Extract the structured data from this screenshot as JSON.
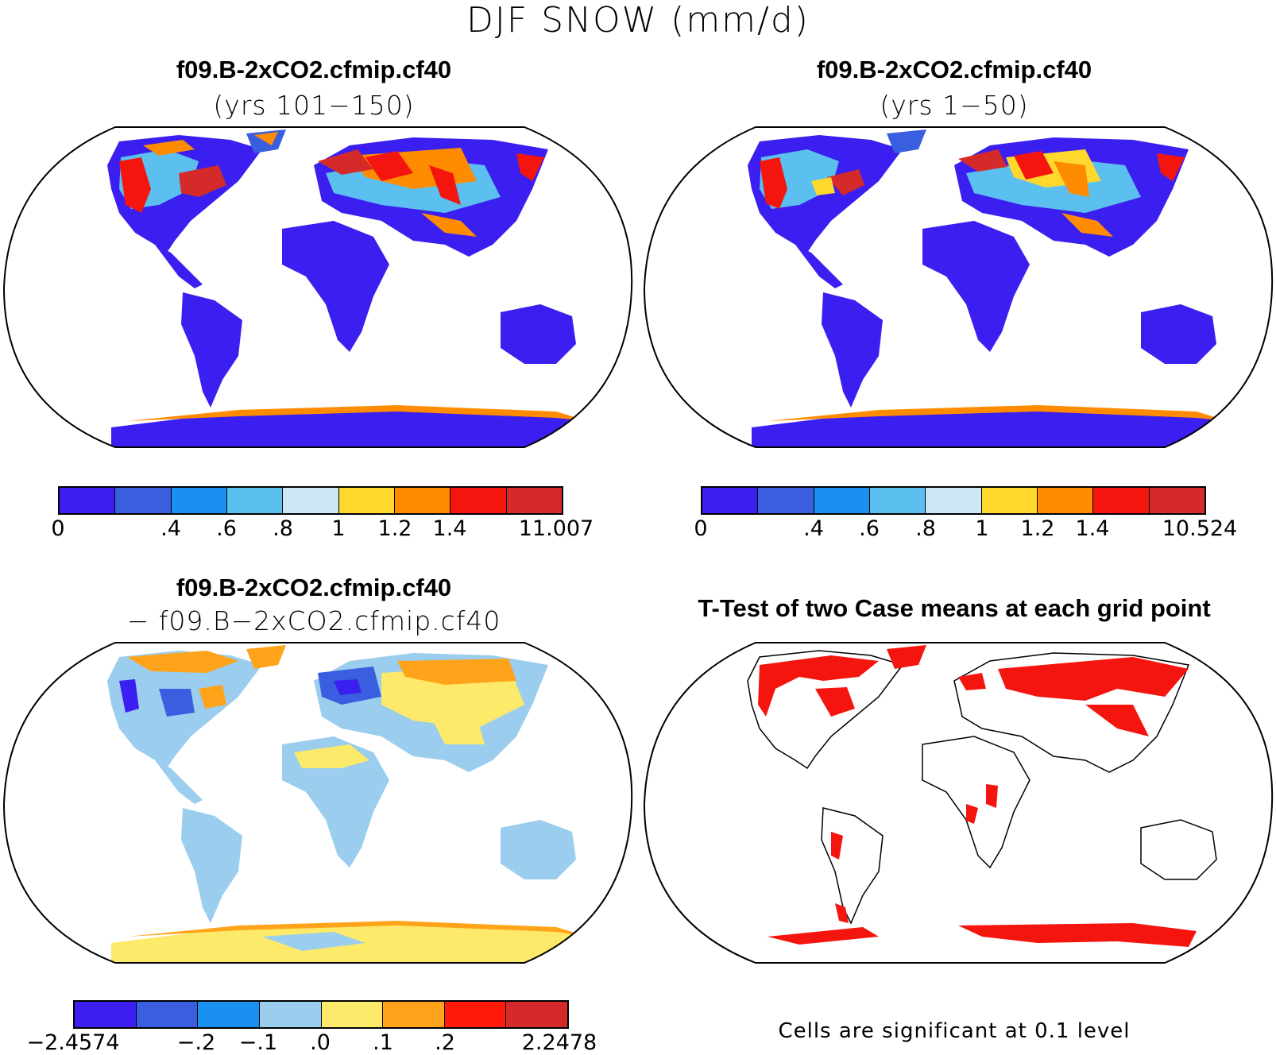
{
  "title": "DJF SNOW (mm/d)",
  "panels": {
    "p1": {
      "case": "f09.B-2xCO2.cfmip.cf40",
      "years": "(yrs 101−150)"
    },
    "p2": {
      "case": "f09.B-2xCO2.cfmip.cf40",
      "years": "(yrs 1−50)"
    },
    "p3": {
      "case": "f09.B-2xCO2.cfmip.cf40",
      "minus_case": "− f09.B−2xCO2.cfmip.cf40"
    },
    "p4": {
      "title": "T-Test of two Case means at each grid point",
      "note": "Cells are significant at 0.1 level"
    }
  },
  "colorbars": {
    "cb1": {
      "colors": [
        "#3b1ff0",
        "#3a5ee0",
        "#1a90f0",
        "#5bbff0",
        "#cde8f5",
        "#ffd82e",
        "#ff8c00",
        "#f5150f",
        "#d42a2a"
      ],
      "ticks": [
        "0",
        ".4",
        ".6",
        ".8",
        "1",
        "1.2",
        "1.4",
        "11.007"
      ]
    },
    "cb2": {
      "colors": [
        "#3b1ff0",
        "#3a5ee0",
        "#1a90f0",
        "#5bbff0",
        "#cde8f5",
        "#ffd82e",
        "#ff8c00",
        "#f5150f",
        "#d42a2a"
      ],
      "ticks": [
        "0",
        ".4",
        ".6",
        ".8",
        "1",
        "1.2",
        "1.4",
        "10.524"
      ]
    },
    "cb3": {
      "colors": [
        "#3b1ff0",
        "#3a5ee0",
        "#1a90f0",
        "#9bcdee",
        "#fdea6a",
        "#ffa41a",
        "#ff1a0a",
        "#d42a2a"
      ],
      "ticks": [
        "−2.4574",
        "−.2",
        "−.1",
        ".0",
        ".1",
        ".2",
        "2.2478"
      ]
    }
  },
  "map_colors": {
    "low": "#3b1ff0",
    "mid_blue": "#3a5ee0",
    "light_blue": "#5bbff0",
    "yellow": "#ffd82e",
    "orange": "#ff8c00",
    "red": "#f5150f",
    "dark_red": "#d42a2a",
    "diff_base": "#9bcdee",
    "diff_yellow": "#fdea6a",
    "signif": "#f5150f"
  }
}
